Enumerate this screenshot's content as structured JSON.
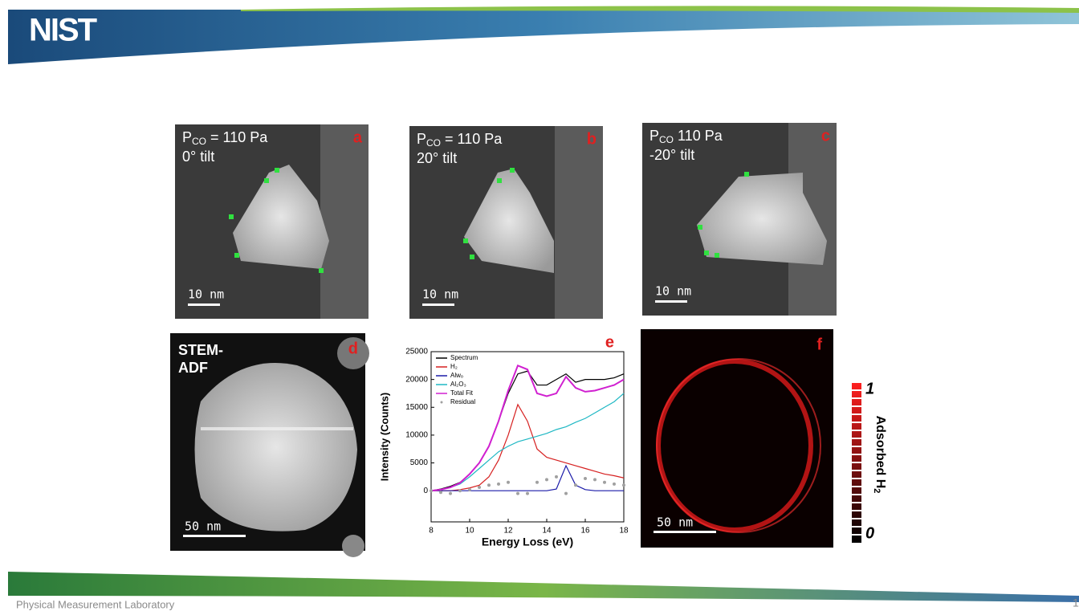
{
  "header": {
    "logo": "NIST"
  },
  "panels": [
    {
      "letter": "a",
      "symbol": "P",
      "sub": "CO",
      "pressure": " = 110 Pa",
      "tilt": "0° tilt",
      "scale": "10 nm"
    },
    {
      "letter": "b",
      "symbol": "P",
      "sub": "CO",
      "pressure": " = 110 Pa",
      "tilt": "20° tilt",
      "scale": "10 nm"
    },
    {
      "letter": "c",
      "symbol": "P",
      "sub": "CO",
      "pressure": " 110 Pa",
      "tilt": "-20° tilt",
      "scale": "10 nm"
    }
  ],
  "panel_d": {
    "letter": "d",
    "lines": [
      "STEM-",
      "ADF"
    ],
    "scale": "50 nm"
  },
  "panel_f": {
    "letter": "f",
    "scale": "50 nm",
    "colorbar": {
      "label": "Adsorbed H",
      "label_sub": "2",
      "max": 1,
      "min": 0
    }
  },
  "chart_data": {
    "type": "line",
    "letter": "e",
    "x_label": "Energy Loss (eV)",
    "y_label": "Intensity (Counts)",
    "x": [
      8,
      8.5,
      9,
      9.5,
      10,
      10.5,
      11,
      11.5,
      12,
      12.5,
      13,
      13.5,
      14,
      14.5,
      15,
      15.5,
      16,
      16.5,
      17,
      17.5,
      18
    ],
    "xlim": [
      8,
      18
    ],
    "xticks": [
      8,
      10,
      12,
      14,
      16,
      18
    ],
    "ylim": [
      -5600,
      25000
    ],
    "yticks": [
      0,
      5000,
      10000,
      15000,
      20000,
      25000
    ],
    "legend": "upper left",
    "series": [
      {
        "name": "Spectrum",
        "color": "#000000",
        "values": [
          0,
          300,
          800,
          1500,
          3000,
          5000,
          8000,
          12500,
          17500,
          21000,
          21500,
          19000,
          19000,
          20000,
          21000,
          19500,
          20000,
          20000,
          20000,
          20300,
          21000
        ]
      },
      {
        "name": "H₂",
        "color": "#d62020",
        "values": [
          0,
          0,
          0,
          200,
          500,
          1000,
          2500,
          5500,
          10000,
          15500,
          12500,
          7500,
          6000,
          5500,
          5000,
          4500,
          4000,
          3500,
          3000,
          2700,
          2300
        ]
      },
      {
        "name": "Alwₒ",
        "color": "#1a1aa8",
        "values": [
          0,
          0,
          0,
          0,
          0,
          0,
          0,
          0,
          0,
          0,
          0,
          0,
          0,
          300,
          4500,
          1000,
          200,
          0,
          0,
          0,
          0
        ]
      },
      {
        "name": "Al₂O₃",
        "color": "#1fb8c4",
        "values": [
          0,
          200,
          600,
          1200,
          2500,
          4000,
          5500,
          7000,
          8000,
          8800,
          9300,
          9800,
          10300,
          11000,
          11500,
          12300,
          13000,
          14000,
          15000,
          16000,
          17500
        ]
      },
      {
        "name": "Total Fit",
        "color": "#d020d0",
        "values": [
          0,
          200,
          600,
          1400,
          3000,
          5000,
          8000,
          12500,
          18000,
          22500,
          21800,
          17500,
          17000,
          17500,
          20500,
          18500,
          17800,
          18000,
          18500,
          19000,
          20000
        ]
      },
      {
        "name": "Residual",
        "color": "#a0a0a0",
        "marker": "dots",
        "values": [
          0,
          -300,
          -500,
          0,
          200,
          600,
          1000,
          1200,
          1500,
          -500,
          -500,
          1500,
          2000,
          2500,
          -500,
          1000,
          2200,
          2000,
          1500,
          1200,
          1000
        ]
      }
    ]
  },
  "footer": {
    "lab": "Physical Measurement Laboratory",
    "page": 1
  }
}
